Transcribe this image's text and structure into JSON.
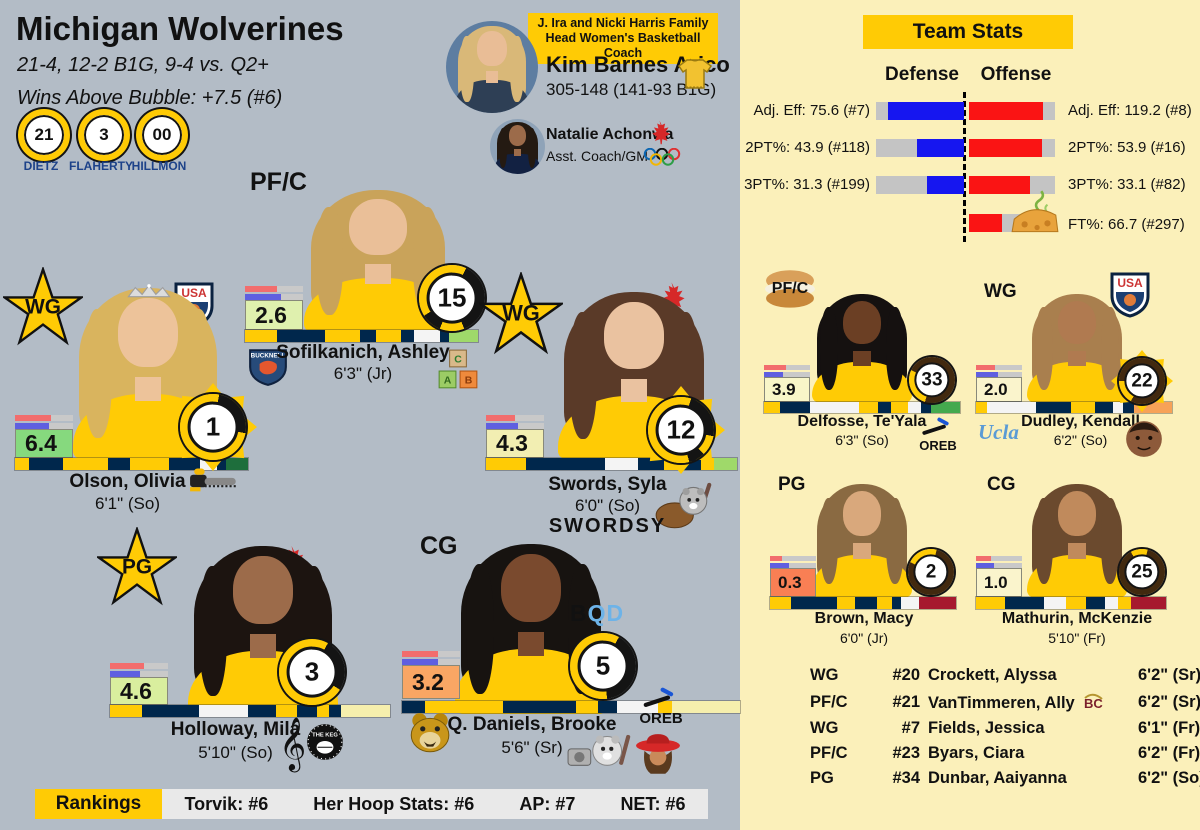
{
  "page": {
    "bg_left": "#b3bcc6",
    "bg_right": "#fbf0ba",
    "maize": "#FFCB05",
    "navy": "#00274C"
  },
  "header": {
    "title": "Michigan Wolverines",
    "record_line": "21-4, 12-2 B1G, 9-4 vs. Q2+",
    "wab_line": "Wins Above Bubble: +7.5 (#6)",
    "jerseys": [
      {
        "number": "21",
        "name": "DIETZ"
      },
      {
        "number": "3",
        "name": "FLAHERTY"
      },
      {
        "number": "00",
        "name": "HILLMON"
      }
    ]
  },
  "coach": {
    "banner_line1": "J. Ira and Nicki Harris Family",
    "banner_line2": "Head Women's Basketball Coach",
    "name": "Kim Barnes Arico",
    "record": "305-148 (141-93 B1G)",
    "avatar": {
      "hair": "#d9b878",
      "skin": "#e9bd96",
      "shirt": "#2e3f55",
      "bg": "#5d7da1"
    },
    "assistant": {
      "name": "Natalie Achonwa",
      "role": "Asst. Coach/GM",
      "avatar": {
        "hair": "#241a12",
        "skin": "#9c6b4a",
        "shirt": "#122142",
        "bg": "#8fa3b8"
      }
    }
  },
  "team_stats": {
    "title": "Team Stats",
    "defense_label": "Defense",
    "offense_label": "Offense",
    "rows": [
      {
        "def_label": "Adj. Eff: 75.6 (#7)",
        "def_pct": 86,
        "off_label": "Adj. Eff: 119.2 (#8)",
        "off_pct": 86
      },
      {
        "def_label": "2PT%: 43.9 (#118)",
        "def_pct": 53,
        "off_label": "2PT%: 53.9 (#16)",
        "off_pct": 85
      },
      {
        "def_label": "3PT%: 31.3 (#199)",
        "def_pct": 42,
        "off_label": "3PT%: 33.1 (#82)",
        "off_pct": 71
      }
    ],
    "ft": {
      "label": "FT%: 66.7 (#297)",
      "pct": 55
    },
    "colors": {
      "defense": "#1616f0",
      "offense": "#fa1414",
      "track": "#c4c4c4"
    }
  },
  "chart_data": {
    "type": "bar",
    "title": "Team Stats",
    "series": [
      {
        "name": "Defense",
        "categories": [
          "Adj. Eff",
          "2PT%",
          "3PT%"
        ],
        "values": [
          75.6,
          43.9,
          31.3
        ],
        "ranks": [
          7,
          118,
          199
        ]
      },
      {
        "name": "Offense",
        "categories": [
          "Adj. Eff",
          "2PT%",
          "3PT%",
          "FT%"
        ],
        "values": [
          119.2,
          53.9,
          33.1,
          66.7
        ],
        "ranks": [
          8,
          16,
          82,
          297
        ]
      }
    ],
    "legend_position": "top",
    "orientation": "diverging-horizontal"
  },
  "players": {
    "sofilkanich": {
      "pos": "PF/C",
      "number": "15",
      "name": "Sofilkanich, Ashley",
      "height": "6'3\" (Jr)",
      "stat": "2.6",
      "stat_color": "#dff0ae",
      "mini": {
        "red": 55,
        "blue": 62
      },
      "ring": [
        {
          "c": "#FFCB05",
          "a": 0,
          "b": 7
        },
        {
          "c": "#141414",
          "a": 7,
          "b": 44
        },
        {
          "c": "#FFCB05",
          "a": 44,
          "b": 56
        },
        {
          "c": "#141414",
          "a": 56,
          "b": 66
        },
        {
          "c": "#FFCB05",
          "a": 66,
          "b": 100
        }
      ],
      "bar": [
        {
          "c": "#FFCB05",
          "w": 1.0
        },
        {
          "c": "#00274C",
          "w": 1.5
        },
        {
          "c": "#FFCB05",
          "w": 1.1
        },
        {
          "c": "#00274C",
          "w": 0.5
        },
        {
          "c": "#FFCB05",
          "w": 0.8
        },
        {
          "c": "#00274C",
          "w": 0.4
        },
        {
          "c": "#f4f4f4",
          "w": 0.8
        },
        {
          "c": "#00274C",
          "w": 0.3
        },
        {
          "c": "#9fd96a",
          "w": 0.9
        }
      ],
      "avatar": {
        "hair": "#c9a35a",
        "skin": "#eabf98"
      },
      "icons": [
        "bucknell-logo",
        "toy-blocks"
      ]
    },
    "olson": {
      "pos": "WG",
      "number": "1",
      "name": "Olson, Olivia",
      "height": "6'1\" (So)",
      "stat": "6.4",
      "stat_color": "#86d97e",
      "mini": {
        "red": 62,
        "blue": 58
      },
      "ring": [
        {
          "c": "#FFCB05",
          "a": 0,
          "b": 3
        },
        {
          "c": "#141414",
          "a": 3,
          "b": 28
        },
        {
          "c": "#FFCB05",
          "a": 28,
          "b": 100
        }
      ],
      "bar": [
        {
          "c": "#FFCB05",
          "w": 0.5
        },
        {
          "c": "#00274C",
          "w": 1.2
        },
        {
          "c": "#FFCB05",
          "w": 1.6
        },
        {
          "c": "#00274C",
          "w": 0.8
        },
        {
          "c": "#FFCB05",
          "w": 1.4
        },
        {
          "c": "#00274C",
          "w": 1.1
        },
        {
          "c": "#f4f4f4",
          "w": 0.6
        },
        {
          "c": "#00274C",
          "w": 0.3
        },
        {
          "c": "#1e6e3c",
          "w": 0.8
        }
      ],
      "avatar": {
        "hair": "#d9b45e",
        "skin": "#edc39a"
      },
      "icons": [
        "usa-basketball-logo",
        "tiara",
        "chainsaw"
      ]
    },
    "swords": {
      "pos": "WG",
      "number": "12",
      "name": "Swords, Syla",
      "height": "6'0\" (So)",
      "nickname": "SWORDSY",
      "stat": "4.3",
      "stat_color": "#f2eeb2",
      "mini": {
        "red": 50,
        "blue": 55
      },
      "ring": [
        {
          "c": "#FFCB05",
          "a": 0,
          "b": 5
        },
        {
          "c": "#141414",
          "a": 5,
          "b": 28
        },
        {
          "c": "#FFCB05",
          "a": 28,
          "b": 38
        },
        {
          "c": "#141414",
          "a": 38,
          "b": 46
        },
        {
          "c": "#FFCB05",
          "a": 46,
          "b": 100
        }
      ],
      "bar": [
        {
          "c": "#FFCB05",
          "w": 1.2
        },
        {
          "c": "#00274C",
          "w": 2.4
        },
        {
          "c": "#f4f4f4",
          "w": 1.0
        },
        {
          "c": "#00274C",
          "w": 0.8
        },
        {
          "c": "#FFCB05",
          "w": 0.6
        },
        {
          "c": "#00274C",
          "w": 0.5
        },
        {
          "c": "#FFCB05",
          "w": 0.4
        },
        {
          "c": "#9fd96a",
          "w": 0.7
        }
      ],
      "avatar": {
        "hair": "#5a3a28",
        "skin": "#eac2a0"
      },
      "icons": [
        "canada-basketball-logo",
        "olympic-rings",
        "beaver-hockey"
      ]
    },
    "holloway": {
      "pos": "PG",
      "number": "3",
      "name": "Holloway, Mila",
      "height": "5'10\" (So)",
      "stat": "4.6",
      "stat_color": "#d9ee9e",
      "mini": {
        "red": 58,
        "blue": 52
      },
      "ring": [
        {
          "c": "#FFCB05",
          "a": 0,
          "b": 8
        },
        {
          "c": "#141414",
          "a": 8,
          "b": 34
        },
        {
          "c": "#FFCB05",
          "a": 34,
          "b": 100
        }
      ],
      "bar": [
        {
          "c": "#FFCB05",
          "w": 0.8
        },
        {
          "c": "#00274C",
          "w": 1.4
        },
        {
          "c": "#f4f4f4",
          "w": 1.2
        },
        {
          "c": "#00274C",
          "w": 0.7
        },
        {
          "c": "#FFCB05",
          "w": 0.5
        },
        {
          "c": "#00274C",
          "w": 0.5
        },
        {
          "c": "#FFCB05",
          "w": 0.3
        },
        {
          "c": "#00274C",
          "w": 0.3
        },
        {
          "c": "#f6efad",
          "w": 1.2
        }
      ],
      "avatar": {
        "hair": "#1c1410",
        "skin": "#9c6b4a"
      },
      "icons": [
        "canada-basketball-logo",
        "treble-clef",
        "keg-logo"
      ]
    },
    "daniels": {
      "pos": "CG",
      "number": "5",
      "name": "Q. Daniels, Brooke",
      "height": "5'6\" (Sr)",
      "wordmark_b": "B",
      "wordmark_qd": "QD",
      "stat": "3.2",
      "stat_color": "#f9a664",
      "mini": {
        "red": 62,
        "blue": 62
      },
      "ring": [
        {
          "c": "#FFCB05",
          "a": 0,
          "b": 8
        },
        {
          "c": "#141414",
          "a": 8,
          "b": 48
        },
        {
          "c": "#FFCB05",
          "a": 48,
          "b": 100
        }
      ],
      "bar": [
        {
          "c": "#00274C",
          "w": 0.5
        },
        {
          "c": "#FFCB05",
          "w": 1.7
        },
        {
          "c": "#00274C",
          "w": 1.6
        },
        {
          "c": "#FFCB05",
          "w": 0.5
        },
        {
          "c": "#00274C",
          "w": 0.4
        },
        {
          "c": "#f4f4f4",
          "w": 0.9
        },
        {
          "c": "#FFCB05",
          "w": 0.3
        },
        {
          "c": "#f6efad",
          "w": 1.5
        }
      ],
      "avatar": {
        "hair": "#171310",
        "skin": "#7a4a2e"
      },
      "oreb_label": "OREB",
      "icons": [
        "oakland-bear-logo",
        "oreb-squeegee",
        "dog-hockey-camera",
        "carmen-sandiego"
      ]
    },
    "delfosse": {
      "pos": "PF/C",
      "number": "33",
      "name": "Delfosse, Te'Yala",
      "height": "6'3\" (So)",
      "stat": "3.9",
      "stat_color": "#f8f6c8",
      "mini": {
        "red": 48,
        "blue": 42
      },
      "ring": [
        {
          "c": "#42290f",
          "a": 0,
          "b": 55
        },
        {
          "c": "#FFCB05",
          "a": 55,
          "b": 82
        },
        {
          "c": "#42290f",
          "a": 82,
          "b": 100
        }
      ],
      "bar": [
        {
          "c": "#FFCB05",
          "w": 0.5
        },
        {
          "c": "#00274C",
          "w": 0.9
        },
        {
          "c": "#f4f4f4",
          "w": 1.5
        },
        {
          "c": "#FFCB05",
          "w": 0.6
        },
        {
          "c": "#00274C",
          "w": 0.4
        },
        {
          "c": "#FFCB05",
          "w": 0.5
        },
        {
          "c": "#f4f4f4",
          "w": 0.4
        },
        {
          "c": "#00274C",
          "w": 0.3
        },
        {
          "c": "#44a94e",
          "w": 0.9
        }
      ],
      "avatar": {
        "hair": "#151110",
        "skin": "#6b3f24"
      },
      "oreb_label": "OREB",
      "icons": [
        "sandwich",
        "oreb-squeegee"
      ]
    },
    "dudley": {
      "pos": "WG",
      "number": "22",
      "name": "Dudley, Kendall",
      "height": "6'2\" (So)",
      "stat": "2.0",
      "stat_color": "#faf4cc",
      "mini": {
        "red": 42,
        "blue": 48
      },
      "ring": [
        {
          "c": "#42290f",
          "a": 0,
          "b": 58
        },
        {
          "c": "#FFCB05",
          "a": 58,
          "b": 75
        },
        {
          "c": "#42290f",
          "a": 75,
          "b": 100
        }
      ],
      "bar": [
        {
          "c": "#FFCB05",
          "w": 0.3
        },
        {
          "c": "#f4f4f4",
          "w": 1.4
        },
        {
          "c": "#00274C",
          "w": 1.0
        },
        {
          "c": "#FFCB05",
          "w": 0.7
        },
        {
          "c": "#00274C",
          "w": 0.5
        },
        {
          "c": "#f4f4f4",
          "w": 0.3
        },
        {
          "c": "#00274C",
          "w": 0.3
        },
        {
          "c": "#f7a257",
          "w": 1.1
        }
      ],
      "avatar": {
        "hair": "#a97f4e",
        "skin": "#b07a50"
      },
      "ucla": "Ucla",
      "icons": [
        "usa-basketball-logo",
        "ucla-logo",
        "shaq-face"
      ]
    },
    "brown": {
      "pos": "PG",
      "number": "2",
      "name": "Brown, Macy",
      "height": "6'0\" (Jr)",
      "stat": "0.3",
      "stat_color": "#f97f54",
      "mini": {
        "red": 25,
        "blue": 42
      },
      "ring": [
        {
          "c": "#FFCB05",
          "a": 0,
          "b": 4
        },
        {
          "c": "#42290f",
          "a": 4,
          "b": 82
        },
        {
          "c": "#FFCB05",
          "a": 82,
          "b": 100
        }
      ],
      "bar": [
        {
          "c": "#FFCB05",
          "w": 0.7
        },
        {
          "c": "#00274C",
          "w": 1.5
        },
        {
          "c": "#FFCB05",
          "w": 0.6
        },
        {
          "c": "#00274C",
          "w": 0.7
        },
        {
          "c": "#FFCB05",
          "w": 0.5
        },
        {
          "c": "#00274C",
          "w": 0.3
        },
        {
          "c": "#f4f4f4",
          "w": 0.6
        },
        {
          "c": "#a6192e",
          "w": 1.2
        }
      ],
      "avatar": {
        "hair": "#8a6a42",
        "skin": "#d9a87c"
      },
      "icons": []
    },
    "mathurin": {
      "pos": "CG",
      "number": "25",
      "name": "Mathurin, McKenzie",
      "height": "5'10\" (Fr)",
      "stat": "1.0",
      "stat_color": "#faf4cc",
      "mini": {
        "red": 32,
        "blue": 40
      },
      "ring": [
        {
          "c": "#FFCB05",
          "a": 0,
          "b": 4
        },
        {
          "c": "#42290f",
          "a": 4,
          "b": 92
        },
        {
          "c": "#FFCB05",
          "a": 92,
          "b": 100
        }
      ],
      "bar": [
        {
          "c": "#FFCB05",
          "w": 0.9
        },
        {
          "c": "#00274C",
          "w": 1.2
        },
        {
          "c": "#f4f4f4",
          "w": 0.7
        },
        {
          "c": "#FFCB05",
          "w": 0.6
        },
        {
          "c": "#00274C",
          "w": 0.6
        },
        {
          "c": "#f4f4f4",
          "w": 0.4
        },
        {
          "c": "#FFCB05",
          "w": 0.4
        },
        {
          "c": "#a6192e",
          "w": 1.1
        }
      ],
      "avatar": {
        "hair": "#6b4a2e",
        "skin": "#c08a5c"
      },
      "icons": []
    }
  },
  "bench": {
    "rows": [
      {
        "pos": "WG",
        "num": "#20",
        "name": "Crockett, Alyssa",
        "height": "6'2\" (Sr)"
      },
      {
        "pos": "PF/C",
        "num": "#21",
        "name": "VanTimmeren, Ally",
        "height": "6'2\" (Sr)"
      },
      {
        "pos": "WG",
        "num": "#7",
        "name": "Fields, Jessica",
        "height": "6'1\" (Fr)"
      },
      {
        "pos": "PF/C",
        "num": "#23",
        "name": "Byars, Ciara",
        "height": "6'2\" (Fr)"
      },
      {
        "pos": "PG",
        "num": "#34",
        "name": "Dunbar, Aaiyanna",
        "height": "6'2\" (So)"
      }
    ]
  },
  "rankings": {
    "label": "Rankings",
    "items": [
      "Torvik: #6",
      "Her Hoop Stats: #6",
      "AP: #7",
      "NET: #6"
    ]
  },
  "logos": {
    "usa": "USA",
    "bucknell": "BUCKNELL",
    "keg": "THE KEG",
    "bc": "BC",
    "block_c": "C",
    "block_a": "A",
    "block_b": "B"
  }
}
